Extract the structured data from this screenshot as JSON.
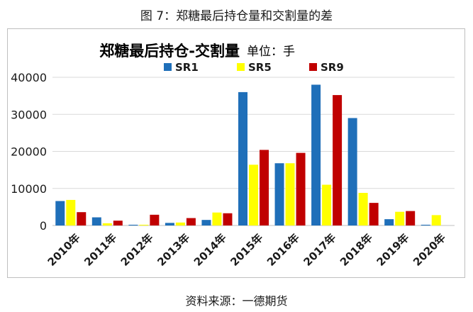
{
  "figure": {
    "title": "图 7：郑糖最后持仓量和交割量的差",
    "source": "资料来源：一德期货"
  },
  "chart_data": {
    "type": "bar",
    "title": "郑糖最后持仓-交割量",
    "unit": "单位：手",
    "xlabel": "",
    "ylabel": "",
    "categories": [
      "2010年",
      "2011年",
      "2012年",
      "2013年",
      "2014年",
      "2015年",
      "2016年",
      "2017年",
      "2018年",
      "2019年",
      "2020年"
    ],
    "series": [
      {
        "name": "SR1",
        "color": "#1f6fb9",
        "values": [
          6600,
          2200,
          200,
          700,
          1500,
          36000,
          16800,
          38000,
          29000,
          1700,
          200
        ]
      },
      {
        "name": "SR5",
        "color": "#ffff00",
        "values": [
          6900,
          600,
          200,
          800,
          3500,
          16400,
          16800,
          11000,
          8800,
          3700,
          2800
        ]
      },
      {
        "name": "SR9",
        "color": "#c00000",
        "values": [
          3600,
          1300,
          2900,
          2000,
          3300,
          20400,
          19600,
          35200,
          6100,
          3900,
          null
        ]
      }
    ],
    "ylim": [
      0,
      40000
    ],
    "yticks": [
      0,
      10000,
      20000,
      30000,
      40000
    ],
    "grid": true,
    "legend": "top"
  }
}
